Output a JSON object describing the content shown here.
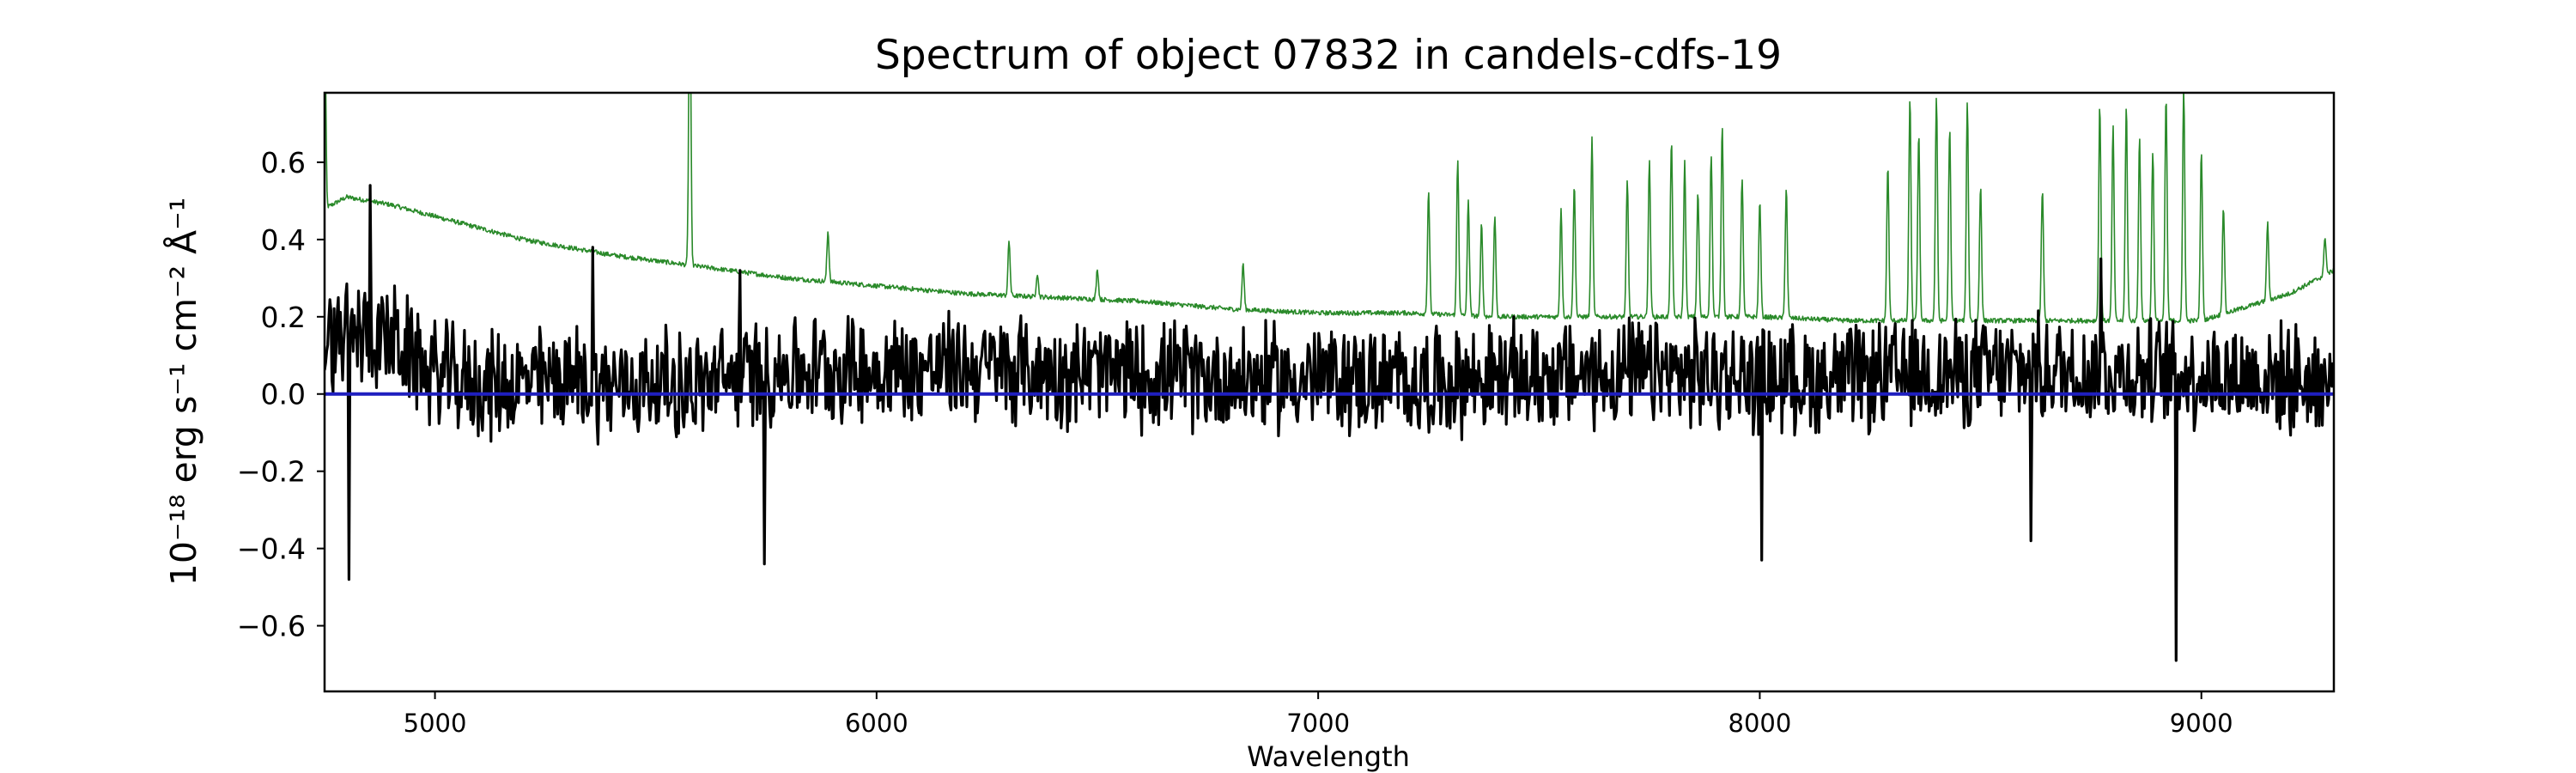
{
  "chart_data": {
    "type": "line",
    "title": "Spectrum of object 07832 in candels-cdfs-19",
    "xlabel": "Wavelength",
    "ylabel": "10⁻¹⁸ erg s⁻¹ cm⁻² Å⁻¹",
    "xlim": [
      4750,
      9300
    ],
    "ylim": [
      -0.77,
      0.78
    ],
    "x_ticks": [
      5000,
      6000,
      7000,
      8000,
      9000
    ],
    "x_tick_labels": [
      "5000",
      "6000",
      "7000",
      "8000",
      "9000"
    ],
    "y_ticks": [
      0.6,
      0.4,
      0.2,
      0.0,
      -0.2,
      -0.4,
      -0.6
    ],
    "y_tick_labels": [
      "0.6",
      "0.4",
      "0.2",
      "0.0",
      "−0.2",
      "−0.4",
      "−0.6"
    ],
    "grid": false,
    "colors": {
      "flux": "#000000",
      "sky": "#2a8a2a",
      "zero": "#1f1fbf"
    },
    "series": [
      {
        "id": "flux",
        "style": "noisy",
        "x": [
          4750,
          4800,
          4850,
          4900,
          5000,
          5100,
          5200,
          5300,
          5400,
          5500,
          5600,
          5700,
          5800,
          5900,
          6000,
          6200,
          6400,
          6600,
          6800,
          7000,
          7200,
          7400,
          7600,
          7800,
          8000,
          8200,
          8400,
          8600,
          8800,
          9000,
          9200,
          9300
        ],
        "y": [
          0.12,
          0.15,
          0.16,
          0.14,
          0.05,
          0.02,
          0.03,
          0.04,
          0.02,
          0.03,
          0.02,
          0.05,
          0.06,
          0.07,
          0.06,
          0.07,
          0.06,
          0.05,
          0.04,
          0.04,
          0.03,
          0.04,
          0.05,
          0.05,
          0.04,
          0.04,
          0.05,
          0.06,
          0.06,
          0.05,
          0.04,
          0.03
        ],
        "noise": 0.16,
        "spikes": [
          [
            4852,
            0.54
          ],
          [
            4805,
            -0.48
          ],
          [
            5746,
            -0.44
          ],
          [
            8943,
            -0.69
          ],
          [
            8005,
            -0.43
          ],
          [
            5358,
            0.38
          ],
          [
            8772,
            0.35
          ],
          [
            5690,
            0.32
          ],
          [
            8615,
            -0.38
          ]
        ]
      },
      {
        "id": "sky",
        "style": "lines",
        "x": [
          4750,
          4800,
          4900,
          5000,
          5200,
          5400,
          5600,
          5800,
          6000,
          6200,
          6400,
          6600,
          6800,
          7000,
          7200,
          7400,
          7600,
          7800,
          8000,
          8200,
          8400,
          8600,
          8800,
          9000,
          9200,
          9300
        ],
        "y": [
          0.48,
          0.51,
          0.49,
          0.46,
          0.4,
          0.36,
          0.33,
          0.3,
          0.28,
          0.26,
          0.25,
          0.24,
          0.22,
          0.21,
          0.21,
          0.2,
          0.2,
          0.2,
          0.2,
          0.19,
          0.19,
          0.19,
          0.19,
          0.19,
          0.26,
          0.32
        ],
        "lines": [
          [
            4750,
            0.6
          ],
          [
            5577,
            0.78
          ],
          [
            5890,
            0.13
          ],
          [
            6300,
            0.14
          ],
          [
            6364,
            0.06
          ],
          [
            6500,
            0.08
          ],
          [
            6830,
            0.12
          ],
          [
            7250,
            0.32
          ],
          [
            7316,
            0.4
          ],
          [
            7340,
            0.3
          ],
          [
            7370,
            0.24
          ],
          [
            7400,
            0.26
          ],
          [
            7550,
            0.28
          ],
          [
            7580,
            0.34
          ],
          [
            7620,
            0.46
          ],
          [
            7700,
            0.35
          ],
          [
            7750,
            0.4
          ],
          [
            7800,
            0.46
          ],
          [
            7830,
            0.4
          ],
          [
            7860,
            0.32
          ],
          [
            7890,
            0.42
          ],
          [
            7915,
            0.5
          ],
          [
            7960,
            0.36
          ],
          [
            8000,
            0.3
          ],
          [
            8060,
            0.34
          ],
          [
            8290,
            0.4
          ],
          [
            8340,
            0.58
          ],
          [
            8360,
            0.48
          ],
          [
            8400,
            0.58
          ],
          [
            8430,
            0.5
          ],
          [
            8470,
            0.56
          ],
          [
            8500,
            0.35
          ],
          [
            8640,
            0.34
          ],
          [
            8770,
            0.56
          ],
          [
            8800,
            0.5
          ],
          [
            8830,
            0.56
          ],
          [
            8860,
            0.48
          ],
          [
            8890,
            0.44
          ],
          [
            8920,
            0.58
          ],
          [
            8960,
            0.6
          ],
          [
            9000,
            0.44
          ],
          [
            9050,
            0.28
          ],
          [
            9150,
            0.2
          ],
          [
            9280,
            0.1
          ]
        ]
      },
      {
        "id": "zero",
        "style": "flat",
        "x": [
          4750,
          9300
        ],
        "y": [
          0.0,
          0.0
        ]
      }
    ]
  }
}
